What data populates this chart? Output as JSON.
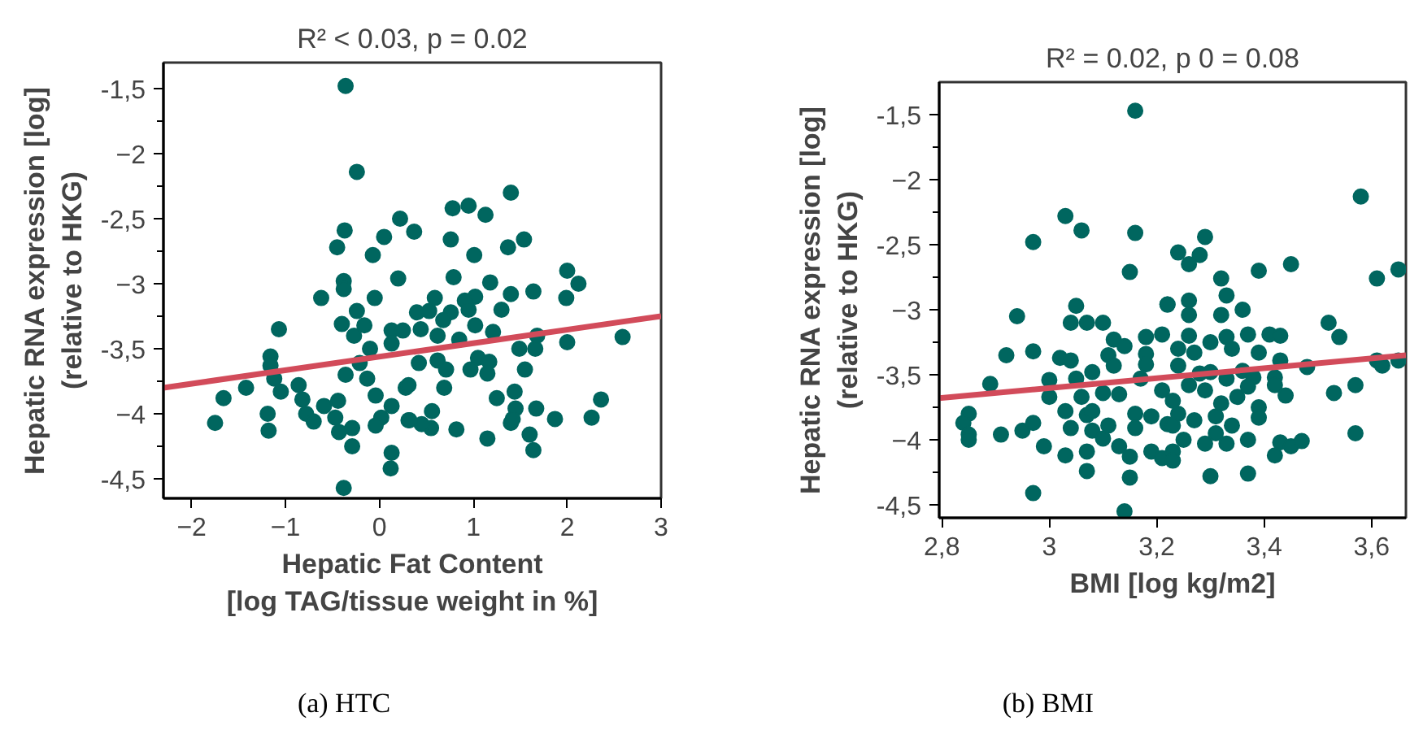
{
  "chart_data": [
    {
      "type": "scatter",
      "title": "R² < 0.03, p = 0.02",
      "xlabel": "Hepatic Fat Content\n[log TAG/tissue weight in %]",
      "ylabel": "Hepatic RNA expression [log]\n(relative to HKG)",
      "xlim": [
        -2.3,
        3
      ],
      "ylim": [
        -4.65,
        -1.3
      ],
      "xticks": [
        -2,
        -1,
        0,
        1,
        2,
        3
      ],
      "yticks": [
        {
          "value": -1.5,
          "label": "-1,5"
        },
        -2,
        {
          "value": -2.5,
          "label": "-2,5"
        },
        -3,
        {
          "value": -3.5,
          "label": "-3,5"
        },
        -4,
        {
          "value": -4.5,
          "label": "-4,5"
        }
      ],
      "grid": false,
      "line_style": "solid",
      "annotations": [
        "(a) HTC"
      ],
      "series": [
        {
          "marker": "circle",
          "color": "#00665f",
          "x": [
            -0.36,
            -0.24,
            -0.37,
            -0.45,
            0.05,
            0.22,
            -0.07,
            -0.38,
            -0.38,
            0.2,
            -0.62,
            -0.05,
            -0.24,
            -1.07,
            -0.4,
            -1.16,
            -1.16,
            -1.12,
            -1.05,
            -1.42,
            -1.66,
            -1.75,
            -1.19,
            -1.18,
            -0.86,
            -0.82,
            -0.78,
            -0.7,
            -0.59,
            -0.47,
            -0.43,
            -0.29,
            -0.29,
            -0.38,
            0.13,
            0.12,
            -0.44,
            -0.36,
            -0.21,
            -0.1,
            -0.13,
            -0.04,
            0.02,
            -0.04,
            0.13,
            0.28,
            0.31,
            0.13,
            0.25,
            -0.16,
            -0.27,
            0.13,
            1.4,
            0.78,
            0.95,
            1.13,
            0.37,
            0.76,
            1.37,
            1.54,
            1.01,
            0.79,
            1.18,
            2.0,
            2.12,
            1.99,
            1.64,
            1.4,
            1.3,
            1.02,
            0.91,
            0.95,
            0.59,
            0.4,
            0.53,
            0.76,
            0.68,
            0.44,
            0.62,
            1.02,
            1.21,
            0.85,
            1.68,
            2.0,
            2.59,
            1.66,
            1.49,
            0.42,
            0.62,
            0.71,
            1.05,
            1.17,
            0.97,
            1.15,
            1.55,
            0.69,
            0.31,
            1.25,
            1.44,
            1.45,
            1.67,
            2.36,
            2.26,
            1.87,
            1.4,
            1.42,
            0.56,
            0.55,
            0.45,
            0.32,
            0.82,
            1.15,
            1.6,
            1.64
          ],
          "values": [
            -1.48,
            -2.14,
            -2.59,
            -2.72,
            -2.64,
            -2.5,
            -2.78,
            -2.98,
            -3.04,
            -2.96,
            -3.11,
            -3.11,
            -3.21,
            -3.35,
            -3.31,
            -3.56,
            -3.63,
            -3.73,
            -3.83,
            -3.8,
            -3.88,
            -4.07,
            -4.0,
            -4.13,
            -3.78,
            -3.89,
            -4.0,
            -4.06,
            -3.94,
            -4.03,
            -4.14,
            -4.11,
            -4.25,
            -4.57,
            -4.3,
            -4.42,
            -3.9,
            -3.7,
            -3.61,
            -3.5,
            -3.73,
            -3.86,
            -4.03,
            -4.09,
            -3.94,
            -3.8,
            -4.05,
            -3.36,
            -3.36,
            -3.32,
            -3.4,
            -3.46,
            -2.3,
            -2.42,
            -2.4,
            -2.47,
            -2.6,
            -2.66,
            -2.72,
            -2.66,
            -2.78,
            -2.95,
            -2.99,
            -2.9,
            -3.0,
            -3.11,
            -3.06,
            -3.08,
            -3.2,
            -3.1,
            -3.13,
            -3.2,
            -3.11,
            -3.22,
            -3.21,
            -3.22,
            -3.28,
            -3.35,
            -3.4,
            -3.32,
            -3.37,
            -3.43,
            -3.4,
            -3.45,
            -3.41,
            -3.5,
            -3.5,
            -3.61,
            -3.59,
            -3.66,
            -3.57,
            -3.6,
            -3.66,
            -3.69,
            -3.66,
            -3.8,
            -3.78,
            -3.88,
            -3.83,
            -3.96,
            -3.96,
            -3.89,
            -4.03,
            -4.04,
            -4.07,
            -4.04,
            -3.98,
            -4.11,
            -4.08,
            -4.05,
            -4.12,
            -4.19,
            -4.16,
            -4.28
          ]
        },
        {
          "type": "line",
          "color": "#d24b5a",
          "x": [
            -2.3,
            3
          ],
          "values": [
            -3.8,
            -3.25
          ]
        }
      ]
    },
    {
      "type": "scatter",
      "title": "R² = 0.02, p 0 = 0.08",
      "xlabel": "BMI [log kg/m2]",
      "ylabel": "Hepatic RNA expression [log]\n(relative to HKG)",
      "xlim": [
        2.795,
        3.664
      ],
      "ylim": [
        -4.6,
        -1.25
      ],
      "xticks": [
        {
          "value": 2.8,
          "label": "2,8"
        },
        3,
        {
          "value": 3.2,
          "label": "3,2"
        },
        {
          "value": 3.4,
          "label": "3,4"
        },
        {
          "value": 3.6,
          "label": "3,6"
        }
      ],
      "yticks": [
        {
          "value": -1.5,
          "label": "-1,5"
        },
        -2,
        {
          "value": -2.5,
          "label": "-2,5"
        },
        -3,
        {
          "value": -3.5,
          "label": "-3,5"
        },
        -4,
        {
          "value": -4.5,
          "label": "-4,5"
        }
      ],
      "grid": false,
      "line_style": "solid",
      "annotations": [
        "(b) BMI"
      ],
      "series": [
        {
          "marker": "circle",
          "color": "#00665f",
          "x": [
            3.16,
            3.03,
            3.06,
            2.97,
            3.16,
            3.15,
            3.22,
            2.94,
            3.05,
            3.04,
            3.07,
            3.1,
            3.12,
            3.14,
            3.18,
            3.21,
            3.18,
            2.92,
            2.97,
            3.02,
            3.04,
            3.11,
            3.12,
            3.18,
            3.08,
            3.0,
            3.05,
            2.89,
            3.0,
            3.06,
            3.1,
            3.13,
            3.17,
            3.21,
            3.03,
            3.07,
            3.08,
            3.16,
            3.19,
            3.16,
            3.22,
            2.85,
            2.84,
            2.85,
            2.85,
            2.91,
            2.95,
            2.97,
            3.04,
            3.08,
            3.1,
            3.11,
            2.99,
            3.03,
            3.07,
            3.13,
            3.15,
            3.19,
            3.21,
            3.07,
            3.15,
            2.97,
            3.14,
            3.58,
            3.29,
            3.24,
            3.28,
            3.26,
            3.39,
            3.45,
            3.61,
            3.65,
            3.32,
            3.33,
            3.36,
            3.32,
            3.26,
            3.22,
            3.26,
            3.26,
            3.33,
            3.37,
            3.41,
            3.43,
            3.52,
            3.54,
            3.3,
            3.24,
            3.27,
            3.34,
            3.39,
            3.43,
            3.48,
            3.61,
            3.62,
            3.65,
            3.24,
            3.28,
            3.3,
            3.33,
            3.36,
            3.38,
            3.42,
            3.26,
            3.29,
            3.32,
            3.35,
            3.37,
            3.42,
            3.44,
            3.53,
            3.57,
            3.23,
            3.24,
            3.27,
            3.31,
            3.34,
            3.39,
            3.39,
            3.23,
            3.25,
            3.29,
            3.31,
            3.33,
            3.37,
            3.43,
            3.45,
            3.47,
            3.57,
            3.42,
            3.23,
            3.23,
            3.3,
            3.37
          ],
          "values": [
            -1.47,
            -2.28,
            -2.39,
            -2.48,
            -2.41,
            -2.71,
            -2.96,
            -3.05,
            -2.97,
            -3.1,
            -3.1,
            -3.1,
            -3.23,
            -3.28,
            -3.21,
            -3.19,
            -3.34,
            -3.35,
            -3.32,
            -3.37,
            -3.39,
            -3.35,
            -3.43,
            -3.42,
            -3.48,
            -3.54,
            -3.53,
            -3.57,
            -3.67,
            -3.67,
            -3.64,
            -3.65,
            -3.53,
            -3.62,
            -3.78,
            -3.81,
            -3.78,
            -3.8,
            -3.82,
            -3.91,
            -3.88,
            -3.8,
            -3.87,
            -3.96,
            -4.0,
            -3.96,
            -3.93,
            -3.87,
            -3.91,
            -3.93,
            -3.99,
            -3.89,
            -4.05,
            -4.12,
            -4.09,
            -4.05,
            -4.13,
            -4.09,
            -4.14,
            -4.24,
            -4.29,
            -4.41,
            -4.55,
            -2.13,
            -2.44,
            -2.56,
            -2.58,
            -2.65,
            -2.7,
            -2.65,
            -2.76,
            -2.69,
            -2.76,
            -2.89,
            -3.0,
            -3.04,
            -2.93,
            -2.96,
            -3.04,
            -3.2,
            -3.21,
            -3.19,
            -3.19,
            -3.2,
            -3.1,
            -3.21,
            -3.25,
            -3.3,
            -3.33,
            -3.3,
            -3.33,
            -3.39,
            -3.44,
            -3.39,
            -3.43,
            -3.39,
            -3.43,
            -3.49,
            -3.48,
            -3.53,
            -3.47,
            -3.52,
            -3.52,
            -3.58,
            -3.62,
            -3.72,
            -3.67,
            -3.59,
            -3.58,
            -3.66,
            -3.64,
            -3.58,
            -3.7,
            -3.8,
            -3.85,
            -3.82,
            -3.89,
            -3.75,
            -3.83,
            -3.89,
            -4.0,
            -4.03,
            -3.95,
            -4.03,
            -4.0,
            -4.02,
            -4.05,
            -4.01,
            -3.95,
            -4.12,
            -4.09,
            -4.16,
            -4.28,
            -4.26
          ]
        },
        {
          "type": "line",
          "color": "#d24b5a",
          "x": [
            2.795,
            3.664
          ],
          "values": [
            -3.68,
            -3.35
          ]
        }
      ]
    }
  ]
}
